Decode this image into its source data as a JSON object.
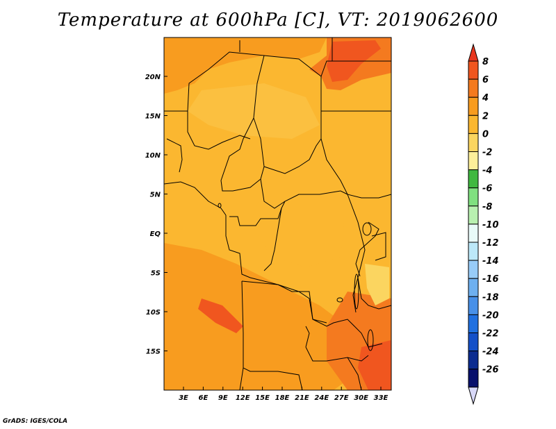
{
  "title": "Temperature at 600hPa [C], VT: 2019062600",
  "credit": "GrADS: IGES/COLA",
  "map": {
    "projection": "lat-lon",
    "lat_ticks": [
      "20N",
      "15N",
      "10N",
      "5N",
      "EQ",
      "5S",
      "10S",
      "15S"
    ],
    "lon_ticks": [
      "3E",
      "6E",
      "9E",
      "12E",
      "15E",
      "18E",
      "21E",
      "24E",
      "27E",
      "30E",
      "33E"
    ],
    "boundaries": "country borders and coastlines",
    "dominant_range": "0 to 4 C",
    "warm_regions": [
      "northeast Sahara/Egypt-Sudan border",
      "southeast Africa / Mozambique",
      "Namibia-Angola highlands"
    ]
  },
  "colorbar": {
    "labels": [
      "8",
      "6",
      "4",
      "2",
      "0",
      "-2",
      "-4",
      "-6",
      "-8",
      "-10",
      "-12",
      "-14",
      "-16",
      "-18",
      "-20",
      "-22",
      "-24",
      "-26"
    ],
    "colors": [
      "#e8361e",
      "#f0561f",
      "#f47a1f",
      "#f89c1f",
      "#fbb730",
      "#fbd560",
      "#fdef9a",
      "#40b840",
      "#80e080",
      "#b8f0b0",
      "#e8faf8",
      "#bce8f8",
      "#98ccf8",
      "#6eb0f0",
      "#4890e8",
      "#2070e0",
      "#1450c8",
      "#0c2c90",
      "#08106c",
      "#d8d8f8"
    ]
  }
}
